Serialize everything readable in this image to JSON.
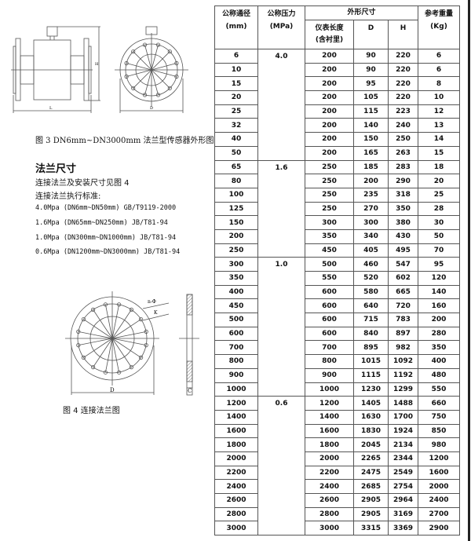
{
  "figure3": {
    "caption": "图 3    DN6mm~DN3000mm 法兰型传感器外形图",
    "labels": {
      "L": "L",
      "H": "H",
      "D": "D"
    }
  },
  "section": {
    "heading": "法兰尺寸",
    "line1": "连接法兰及安装尺寸见图 4",
    "line2": "连接法兰执行标准:",
    "standards": [
      "4.0Mpa (DN6mm~DN50mm)    GB/T9119-2000",
      "1.6Mpa (DN65mm~DN250mm)    JB/T81-94",
      "1.0Mpa (DN300mm~DN1000mm)    JB/T81-94",
      "0.6Mpa (DN1200mm~DN3000mm)    JB/T81-94"
    ]
  },
  "figure4": {
    "caption": "图 4   连接法兰图",
    "labels": {
      "n": "n-Φ",
      "K": "K",
      "D": "D",
      "C": "C"
    }
  },
  "table": {
    "headers": {
      "dn": "公称通径",
      "dn_unit": "(mm)",
      "pn": "公称压力",
      "pn_unit": "(MPa)",
      "dims": "外形尺寸",
      "length": "仪表长度",
      "length_sub": "(含衬里)",
      "D": "D",
      "H": "H",
      "weight": "参考重量",
      "weight_unit": "(Kg)"
    },
    "pressure_groups": [
      {
        "value": "4.0",
        "rows": 8
      },
      {
        "value": "1.6",
        "rows": 7
      },
      {
        "value": "1.0",
        "rows": 10
      },
      {
        "value": "0.6",
        "rows": 10
      }
    ],
    "rows": [
      [
        "6",
        "200",
        "90",
        "220",
        "6"
      ],
      [
        "10",
        "200",
        "90",
        "220",
        "6"
      ],
      [
        "15",
        "200",
        "95",
        "220",
        "8"
      ],
      [
        "20",
        "200",
        "105",
        "220",
        "10"
      ],
      [
        "25",
        "200",
        "115",
        "223",
        "12"
      ],
      [
        "32",
        "200",
        "140",
        "240",
        "13"
      ],
      [
        "40",
        "200",
        "150",
        "250",
        "14"
      ],
      [
        "50",
        "200",
        "165",
        "263",
        "15"
      ],
      [
        "65",
        "250",
        "185",
        "283",
        "18"
      ],
      [
        "80",
        "250",
        "200",
        "290",
        "20"
      ],
      [
        "100",
        "250",
        "235",
        "318",
        "25"
      ],
      [
        "125",
        "250",
        "270",
        "350",
        "28"
      ],
      [
        "150",
        "300",
        "300",
        "380",
        "30"
      ],
      [
        "200",
        "350",
        "340",
        "430",
        "50"
      ],
      [
        "250",
        "450",
        "405",
        "495",
        "70"
      ],
      [
        "300",
        "500",
        "460",
        "547",
        "95"
      ],
      [
        "350",
        "550",
        "520",
        "602",
        "120"
      ],
      [
        "400",
        "600",
        "580",
        "665",
        "140"
      ],
      [
        "450",
        "600",
        "640",
        "720",
        "160"
      ],
      [
        "500",
        "600",
        "715",
        "783",
        "200"
      ],
      [
        "600",
        "600",
        "840",
        "897",
        "280"
      ],
      [
        "700",
        "700",
        "895",
        "982",
        "350"
      ],
      [
        "800",
        "800",
        "1015",
        "1092",
        "400"
      ],
      [
        "900",
        "900",
        "1115",
        "1192",
        "480"
      ],
      [
        "1000",
        "1000",
        "1230",
        "1299",
        "550"
      ],
      [
        "1200",
        "1200",
        "1405",
        "1488",
        "660"
      ],
      [
        "1400",
        "1400",
        "1630",
        "1700",
        "750"
      ],
      [
        "1600",
        "1600",
        "1830",
        "1924",
        "850"
      ],
      [
        "1800",
        "1800",
        "2045",
        "2134",
        "980"
      ],
      [
        "2000",
        "2000",
        "2265",
        "2344",
        "1200"
      ],
      [
        "2200",
        "2200",
        "2475",
        "2549",
        "1600"
      ],
      [
        "2400",
        "2400",
        "2685",
        "2754",
        "2000"
      ],
      [
        "2600",
        "2600",
        "2905",
        "2964",
        "2400"
      ],
      [
        "2800",
        "2800",
        "2905",
        "3169",
        "2700"
      ],
      [
        "3000",
        "3000",
        "3315",
        "3369",
        "2900"
      ]
    ]
  }
}
